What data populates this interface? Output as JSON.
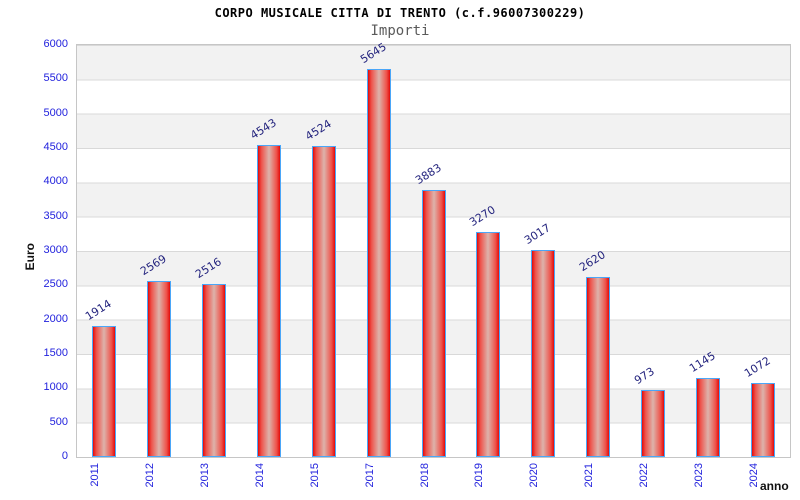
{
  "header": {
    "title": "CORPO MUSICALE CITTA DI TRENTO (c.f.96007300229)",
    "subtitle": "Importi"
  },
  "chart_data": {
    "type": "bar",
    "title": "CORPO MUSICALE CITTA DI TRENTO (c.f.96007300229)",
    "subtitle": "Importi",
    "xlabel": "anno",
    "ylabel": "Euro",
    "categories": [
      "2011",
      "2012",
      "2013",
      "2014",
      "2015",
      "2017",
      "2018",
      "2019",
      "2020",
      "2021",
      "2022",
      "2023",
      "2024"
    ],
    "values": [
      1914,
      2569,
      2516,
      4543,
      4524,
      5645,
      3883,
      3270,
      3017,
      2620,
      973,
      1145,
      1072
    ],
    "ylim": [
      0,
      6000
    ],
    "ytick_step": 500,
    "yticks": [
      0,
      500,
      1000,
      1500,
      2000,
      2500,
      3000,
      3500,
      4000,
      4500,
      5000,
      5500,
      6000
    ],
    "grid": "horizontal gridlines with alternating gray/white bands",
    "legend": "none",
    "bar_labels_rotated": true,
    "colors": {
      "bar_fill_edge": "#e30b0b",
      "bar_fill_center": "#ddb3ab",
      "bar_border": "#4aa6f8",
      "tick_label": "#2222dd",
      "value_label": "#24247e",
      "band_gray": "#f2f2f2",
      "grid_line": "#d9d9d9",
      "title": "#000000",
      "subtitle": "#5a5a5a",
      "axis_title": "#111111"
    }
  }
}
